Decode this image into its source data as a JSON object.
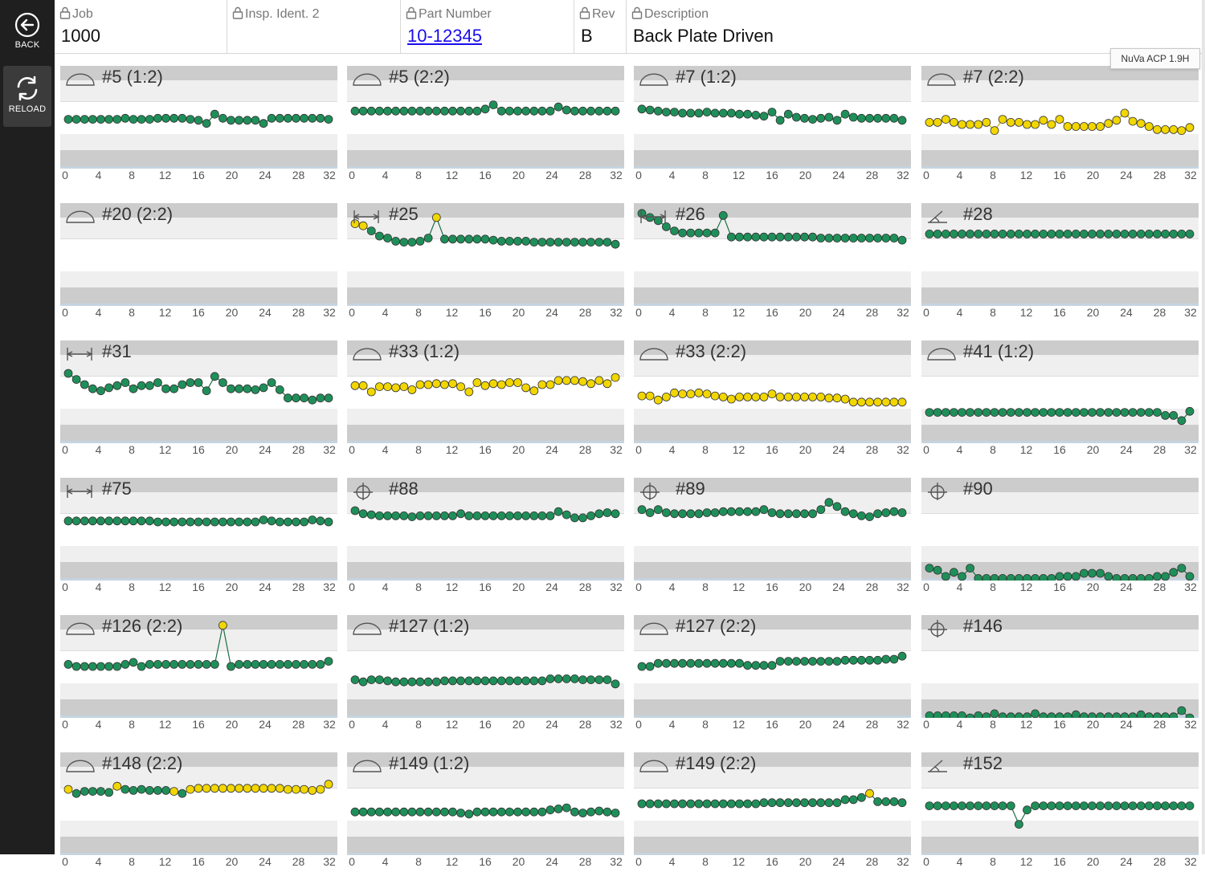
{
  "sidebar": {
    "back_label": "BACK",
    "reload_label": "RELOAD"
  },
  "header": {
    "job": {
      "label": "Job",
      "value": "1000"
    },
    "insp": {
      "label": "Insp. Ident. 2",
      "value": ""
    },
    "part": {
      "label": "Part Number",
      "value": "10-12345"
    },
    "rev": {
      "label": "Rev",
      "value": "B"
    },
    "desc": {
      "label": "Description",
      "value": "Back Plate Driven"
    }
  },
  "tooltip": "NuVa ACP 1.9H",
  "x_ticks": [
    "0",
    "4",
    "8",
    "12",
    "16",
    "20",
    "24",
    "28",
    "32"
  ],
  "colors": {
    "in_spec": "#1f8f5a",
    "warning": "#f2d600",
    "band_dark": "#cccccc",
    "band_light": "#efefef"
  },
  "charts": [
    {
      "title": "#5 (1:2)",
      "symbol": "profile-icon",
      "color": "green",
      "y": [
        0.52,
        0.52,
        0.52,
        0.52,
        0.52,
        0.52,
        0.52,
        0.51,
        0.52,
        0.52,
        0.52,
        0.51,
        0.51,
        0.51,
        0.51,
        0.52,
        0.53,
        0.56,
        0.47,
        0.51,
        0.53,
        0.53,
        0.53,
        0.53,
        0.56,
        0.51,
        0.51,
        0.51,
        0.51,
        0.51,
        0.51,
        0.51,
        0.52
      ]
    },
    {
      "title": "#5 (2:2)",
      "symbol": "profile-icon",
      "color": "green",
      "y": [
        0.44,
        0.44,
        0.44,
        0.44,
        0.44,
        0.44,
        0.44,
        0.44,
        0.44,
        0.44,
        0.44,
        0.44,
        0.44,
        0.44,
        0.44,
        0.44,
        0.42,
        0.38,
        0.44,
        0.44,
        0.44,
        0.44,
        0.44,
        0.44,
        0.44,
        0.4,
        0.43,
        0.44,
        0.44,
        0.44,
        0.44,
        0.44,
        0.44
      ]
    },
    {
      "title": "#7 (1:2)",
      "symbol": "profile-icon",
      "color": "green",
      "y": [
        0.42,
        0.43,
        0.44,
        0.45,
        0.45,
        0.46,
        0.46,
        0.46,
        0.45,
        0.46,
        0.46,
        0.46,
        0.47,
        0.47,
        0.48,
        0.49,
        0.45,
        0.53,
        0.47,
        0.5,
        0.51,
        0.52,
        0.51,
        0.5,
        0.53,
        0.47,
        0.5,
        0.51,
        0.51,
        0.51,
        0.51,
        0.51,
        0.53
      ]
    },
    {
      "title": "#7 (2:2)",
      "symbol": "profile-icon",
      "color": "yellow",
      "y": [
        0.55,
        0.55,
        0.52,
        0.55,
        0.57,
        0.57,
        0.57,
        0.55,
        0.63,
        0.52,
        0.55,
        0.55,
        0.57,
        0.57,
        0.53,
        0.57,
        0.52,
        0.59,
        0.59,
        0.59,
        0.59,
        0.59,
        0.56,
        0.53,
        0.46,
        0.54,
        0.56,
        0.59,
        0.62,
        0.62,
        0.62,
        0.63,
        0.6
      ]
    },
    {
      "title": "#20 (2:2)",
      "symbol": "profile-icon",
      "color": "green",
      "y": [
        1.2,
        1.2,
        1.2,
        1.2,
        1.3,
        1.17,
        1.17,
        1.17,
        1.2,
        1.22,
        1.2,
        1.2,
        1.2,
        1.2,
        1.2,
        1.2,
        1.23,
        1.13,
        1.2,
        1.13,
        1.2,
        1.22,
        1.22,
        1.22,
        1.22,
        1.22,
        1.2,
        1.17,
        1.17,
        1.17,
        1.12,
        1.2,
        1.27
      ]
    },
    {
      "title": "#25",
      "symbol": "position-icon",
      "color": "green",
      "y": [
        0.2,
        0.22,
        0.27,
        0.32,
        0.34,
        0.37,
        0.38,
        0.38,
        0.37,
        0.34,
        0.14,
        0.35,
        0.35,
        0.35,
        0.35,
        0.35,
        0.35,
        0.36,
        0.37,
        0.37,
        0.37,
        0.37,
        0.38,
        0.38,
        0.38,
        0.38,
        0.38,
        0.38,
        0.38,
        0.38,
        0.38,
        0.38,
        0.4
      ],
      "yellow_idx": [
        0,
        1,
        10
      ]
    },
    {
      "title": "#26",
      "symbol": "position-icon",
      "color": "green",
      "y": [
        0.1,
        0.14,
        0.17,
        0.23,
        0.27,
        0.29,
        0.29,
        0.29,
        0.29,
        0.29,
        0.12,
        0.33,
        0.33,
        0.33,
        0.33,
        0.33,
        0.33,
        0.33,
        0.33,
        0.33,
        0.33,
        0.33,
        0.34,
        0.34,
        0.34,
        0.34,
        0.34,
        0.34,
        0.34,
        0.34,
        0.34,
        0.34,
        0.36
      ]
    },
    {
      "title": "#28",
      "symbol": "angularity-icon",
      "color": "green",
      "y": [
        0.3,
        0.3,
        0.3,
        0.3,
        0.3,
        0.3,
        0.3,
        0.3,
        0.3,
        0.3,
        0.3,
        0.3,
        0.3,
        0.3,
        0.3,
        0.3,
        0.3,
        0.3,
        0.3,
        0.3,
        0.3,
        0.3,
        0.3,
        0.3,
        0.3,
        0.3,
        0.3,
        0.3,
        0.3,
        0.3,
        0.3,
        0.3,
        0.3
      ]
    },
    {
      "title": "#31",
      "symbol": "position-icon",
      "color": "green",
      "y": [
        0.32,
        0.38,
        0.43,
        0.47,
        0.49,
        0.46,
        0.44,
        0.41,
        0.47,
        0.44,
        0.44,
        0.41,
        0.47,
        0.47,
        0.43,
        0.41,
        0.41,
        0.49,
        0.35,
        0.41,
        0.47,
        0.47,
        0.47,
        0.48,
        0.46,
        0.41,
        0.48,
        0.56,
        0.56,
        0.56,
        0.58,
        0.56,
        0.56
      ]
    },
    {
      "title": "#33 (1:2)",
      "symbol": "profile-icon",
      "color": "yellow",
      "y": [
        0.44,
        0.44,
        0.5,
        0.45,
        0.45,
        0.46,
        0.45,
        0.48,
        0.43,
        0.43,
        0.42,
        0.43,
        0.42,
        0.45,
        0.5,
        0.41,
        0.44,
        0.42,
        0.43,
        0.41,
        0.41,
        0.46,
        0.49,
        0.43,
        0.43,
        0.39,
        0.39,
        0.39,
        0.4,
        0.42,
        0.39,
        0.42,
        0.36
      ]
    },
    {
      "title": "#33 (2:2)",
      "symbol": "profile-icon",
      "color": "yellow",
      "y": [
        0.54,
        0.54,
        0.58,
        0.55,
        0.51,
        0.52,
        0.52,
        0.51,
        0.52,
        0.54,
        0.55,
        0.57,
        0.55,
        0.55,
        0.55,
        0.55,
        0.52,
        0.55,
        0.55,
        0.55,
        0.55,
        0.55,
        0.55,
        0.56,
        0.56,
        0.57,
        0.6,
        0.6,
        0.6,
        0.6,
        0.6,
        0.6,
        0.6
      ]
    },
    {
      "title": "#41 (1:2)",
      "symbol": "profile-icon",
      "color": "green",
      "y": [
        0.7,
        0.7,
        0.7,
        0.7,
        0.7,
        0.7,
        0.7,
        0.7,
        0.7,
        0.7,
        0.7,
        0.7,
        0.7,
        0.7,
        0.7,
        0.7,
        0.7,
        0.7,
        0.7,
        0.7,
        0.7,
        0.7,
        0.7,
        0.7,
        0.7,
        0.7,
        0.7,
        0.7,
        0.7,
        0.73,
        0.73,
        0.78,
        0.69
      ]
    },
    {
      "title": "#75",
      "symbol": "position-icon",
      "color": "green",
      "y": [
        0.42,
        0.42,
        0.42,
        0.42,
        0.42,
        0.42,
        0.42,
        0.42,
        0.42,
        0.42,
        0.42,
        0.43,
        0.43,
        0.43,
        0.43,
        0.43,
        0.43,
        0.43,
        0.43,
        0.43,
        0.43,
        0.43,
        0.43,
        0.43,
        0.41,
        0.42,
        0.43,
        0.43,
        0.43,
        0.43,
        0.41,
        0.42,
        0.43
      ]
    },
    {
      "title": "#88",
      "symbol": "crosshair-icon",
      "color": "green",
      "y": [
        0.32,
        0.35,
        0.36,
        0.37,
        0.37,
        0.37,
        0.37,
        0.38,
        0.37,
        0.37,
        0.37,
        0.37,
        0.37,
        0.35,
        0.37,
        0.37,
        0.37,
        0.37,
        0.37,
        0.37,
        0.37,
        0.37,
        0.37,
        0.37,
        0.37,
        0.33,
        0.36,
        0.39,
        0.39,
        0.37,
        0.35,
        0.34,
        0.35
      ]
    },
    {
      "title": "#89",
      "symbol": "crosshair-icon",
      "color": "green",
      "y": [
        0.31,
        0.34,
        0.31,
        0.34,
        0.35,
        0.35,
        0.35,
        0.35,
        0.34,
        0.34,
        0.33,
        0.33,
        0.33,
        0.33,
        0.33,
        0.31,
        0.34,
        0.35,
        0.35,
        0.35,
        0.35,
        0.35,
        0.31,
        0.24,
        0.28,
        0.33,
        0.35,
        0.37,
        0.38,
        0.35,
        0.34,
        0.33,
        0.34
      ]
    },
    {
      "title": "#90",
      "symbol": "crosshair-icon",
      "color": "green",
      "y": [
        0.88,
        0.9,
        0.96,
        0.92,
        0.96,
        0.88,
        0.98,
        0.98,
        0.98,
        0.98,
        0.98,
        0.98,
        0.98,
        0.98,
        0.98,
        0.98,
        0.96,
        0.96,
        0.96,
        0.93,
        0.93,
        0.93,
        0.96,
        0.98,
        0.98,
        0.98,
        0.98,
        0.98,
        0.96,
        0.96,
        0.92,
        0.88,
        0.96
      ]
    },
    {
      "title": "#126 (2:2)",
      "symbol": "profile-icon",
      "color": "green",
      "y": [
        0.48,
        0.5,
        0.5,
        0.5,
        0.5,
        0.5,
        0.5,
        0.48,
        0.46,
        0.5,
        0.48,
        0.48,
        0.48,
        0.48,
        0.48,
        0.48,
        0.48,
        0.48,
        0.48,
        0.48,
        0.5,
        0.48,
        0.48,
        0.48,
        0.48,
        0.48,
        0.48,
        0.48,
        0.48,
        0.48,
        0.48,
        0.48,
        0.45
      ],
      "yellow_idx": [
        19
      ],
      "y_override": {
        "19": 0.1
      }
    },
    {
      "title": "#127 (1:2)",
      "symbol": "profile-icon",
      "color": "green",
      "y": [
        0.63,
        0.65,
        0.63,
        0.63,
        0.64,
        0.65,
        0.65,
        0.65,
        0.65,
        0.65,
        0.65,
        0.64,
        0.64,
        0.64,
        0.64,
        0.64,
        0.64,
        0.64,
        0.64,
        0.64,
        0.64,
        0.64,
        0.64,
        0.64,
        0.62,
        0.62,
        0.62,
        0.62,
        0.63,
        0.63,
        0.63,
        0.63,
        0.67
      ]
    },
    {
      "title": "#127 (2:2)",
      "symbol": "profile-icon",
      "color": "green",
      "y": [
        0.5,
        0.5,
        0.47,
        0.47,
        0.47,
        0.47,
        0.47,
        0.47,
        0.47,
        0.47,
        0.47,
        0.47,
        0.47,
        0.49,
        0.49,
        0.49,
        0.49,
        0.45,
        0.45,
        0.45,
        0.45,
        0.45,
        0.45,
        0.45,
        0.45,
        0.44,
        0.44,
        0.44,
        0.44,
        0.44,
        0.43,
        0.43,
        0.4
      ]
    },
    {
      "title": "#146",
      "symbol": "crosshair-icon",
      "color": "green",
      "y": [
        0.98,
        0.98,
        0.98,
        0.98,
        0.98,
        1.0,
        0.98,
        0.99,
        0.96,
        0.99,
        0.99,
        0.99,
        0.99,
        0.96,
        0.99,
        0.99,
        0.99,
        0.99,
        0.97,
        0.99,
        0.99,
        0.99,
        0.99,
        0.99,
        0.99,
        0.99,
        0.97,
        0.99,
        0.99,
        0.99,
        0.99,
        0.93,
        1.0
      ]
    },
    {
      "title": "#148 (2:2)",
      "symbol": "profile-icon",
      "color": "yellow",
      "y": [
        0.36,
        0.4,
        0.38,
        0.38,
        0.38,
        0.39,
        0.33,
        0.36,
        0.37,
        0.36,
        0.37,
        0.37,
        0.37,
        0.38,
        0.4,
        0.36,
        0.35,
        0.35,
        0.35,
        0.35,
        0.35,
        0.35,
        0.35,
        0.35,
        0.35,
        0.35,
        0.35,
        0.36,
        0.36,
        0.36,
        0.37,
        0.36,
        0.31
      ],
      "green_idx": [
        1,
        2,
        3,
        4,
        5,
        7,
        8,
        9,
        10,
        11,
        12,
        14
      ]
    },
    {
      "title": "#149 (1:2)",
      "symbol": "profile-icon",
      "color": "green",
      "y": [
        0.58,
        0.58,
        0.58,
        0.58,
        0.58,
        0.58,
        0.58,
        0.58,
        0.58,
        0.58,
        0.58,
        0.58,
        0.58,
        0.59,
        0.6,
        0.58,
        0.58,
        0.58,
        0.58,
        0.58,
        0.58,
        0.58,
        0.58,
        0.58,
        0.56,
        0.55,
        0.54,
        0.58,
        0.59,
        0.58,
        0.57,
        0.58,
        0.59
      ]
    },
    {
      "title": "#149 (2:2)",
      "symbol": "profile-icon",
      "color": "green",
      "y": [
        0.5,
        0.5,
        0.5,
        0.5,
        0.5,
        0.5,
        0.5,
        0.5,
        0.5,
        0.5,
        0.5,
        0.5,
        0.5,
        0.5,
        0.5,
        0.49,
        0.49,
        0.49,
        0.49,
        0.49,
        0.49,
        0.49,
        0.49,
        0.49,
        0.49,
        0.46,
        0.46,
        0.44,
        0.4,
        0.48,
        0.48,
        0.48,
        0.49
      ],
      "yellow_idx": [
        28
      ]
    },
    {
      "title": "#152",
      "symbol": "angularity-icon",
      "color": "green",
      "y": [
        0.52,
        0.52,
        0.52,
        0.52,
        0.52,
        0.52,
        0.52,
        0.52,
        0.52,
        0.52,
        0.52,
        0.52,
        0.52,
        0.52,
        0.52,
        0.52,
        0.52,
        0.52,
        0.52,
        0.52,
        0.52,
        0.52,
        0.52,
        0.52,
        0.52,
        0.52,
        0.52,
        0.52,
        0.52,
        0.52,
        0.52,
        0.52,
        0.52
      ],
      "y_override": {
        "11": 0.7,
        "12": 0.56
      }
    }
  ]
}
